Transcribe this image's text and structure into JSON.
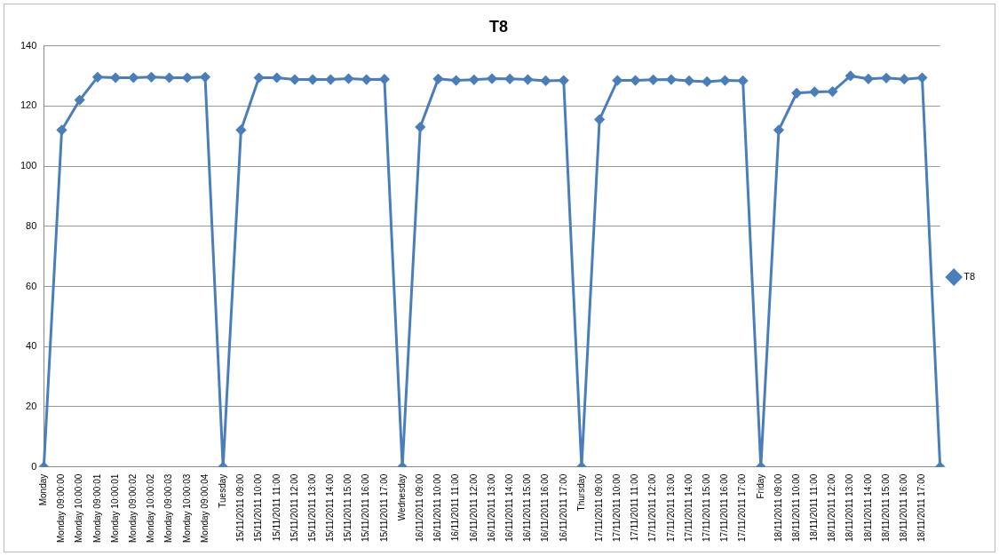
{
  "chart_data": {
    "type": "line",
    "title": "T8",
    "categories": [
      "Monday",
      "Monday 09:00:00",
      "Monday 10:00:00",
      "Monday 09:00:01",
      "Monday 10:00:01",
      "Monday 09:00:02",
      "Monday 10:00:02",
      "Monday 09:00:03",
      "Monday 10:00:03",
      "Monday 09:00:04",
      "Tuesday",
      "15/11/2011 09:00",
      "15/11/2011 10:00",
      "15/11/2011 11:00",
      "15/11/2011 12:00",
      "15/11/2011 13:00",
      "15/11/2011 14:00",
      "15/11/2011 15:00",
      "15/11/2011 16:00",
      "15/11/2011 17:00",
      "Wednesday",
      "16/11/2011 09:00",
      "16/11/2011 10:00",
      "16/11/2011 11:00",
      "16/11/2011 12:00",
      "16/11/2011 13:00",
      "16/11/2011 14:00",
      "16/11/2011 15:00",
      "16/11/2011 16:00",
      "16/11/2011 17:00",
      "Thursday",
      "17/11/2011 09:00",
      "17/11/2011 10:00",
      "17/11/2011 11:00",
      "17/11/2011 12:00",
      "17/11/2011 13:00",
      "17/11/2011 14:00",
      "17/11/2011 15:00",
      "17/11/2011 16:00",
      "17/11/2011 17:00",
      "Friday",
      "18/11/2011 09:00",
      "18/11/2011 10:00",
      "18/11/2011 11:00",
      "18/11/2011 12:00",
      "18/11/2011 13:00",
      "18/11/2011 14:00",
      "18/11/2011 15:00",
      "18/11/2011 16:00",
      "18/11/2011 17:00",
      null
    ],
    "series": [
      {
        "name": "T8",
        "color": "#4a7ebb",
        "values": [
          0,
          112,
          122,
          129.6,
          129.4,
          129.4,
          129.6,
          129.4,
          129.4,
          129.6,
          0,
          112,
          129.4,
          129.4,
          128.8,
          128.8,
          128.8,
          129.1,
          128.8,
          128.9,
          0,
          113,
          129,
          128.5,
          128.7,
          129.1,
          129,
          128.8,
          128.4,
          128.5,
          0,
          115.5,
          128.5,
          128.5,
          128.7,
          128.8,
          128.4,
          128.1,
          128.5,
          128.4,
          0,
          112,
          124.3,
          124.7,
          124.8,
          130,
          129,
          129.3,
          128.9,
          129.4,
          0
        ]
      }
    ],
    "ylim": [
      0,
      140
    ],
    "yticks": [
      0,
      20,
      40,
      60,
      80,
      100,
      120,
      140
    ],
    "grid": "y",
    "legend": "right",
    "marker": "diamond",
    "line_style": "solid"
  }
}
